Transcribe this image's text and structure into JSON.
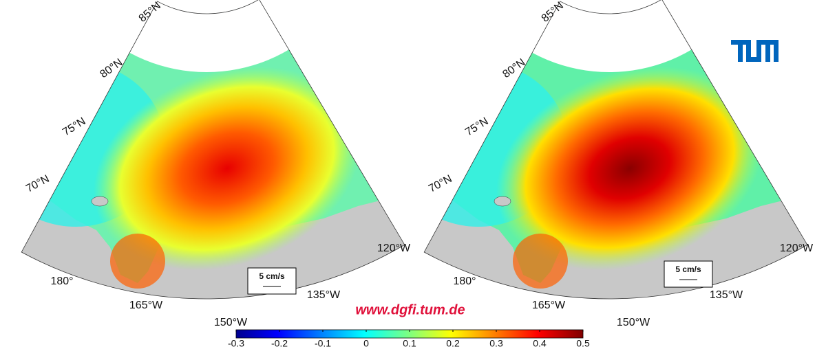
{
  "maps": [
    {
      "lat_labels": [
        "85°N",
        "80°N",
        "75°N",
        "70°N"
      ],
      "lon_labels": [
        "180°",
        "165°W",
        "150°W",
        "135°W",
        "120°W"
      ],
      "scale_label": "5 cm/s"
    },
    {
      "lat_labels": [
        "85°N",
        "80°N",
        "75°N",
        "70°N"
      ],
      "lon_labels": [
        "180°",
        "165°W",
        "150°W",
        "135°W",
        "120°W"
      ],
      "scale_label": "5 cm/s"
    }
  ],
  "url": "www.dgfi.tum.de",
  "colorbar": {
    "range": [
      -0.3,
      0.5
    ],
    "ticks": [
      -0.3,
      -0.2,
      -0.1,
      0,
      0.1,
      0.2,
      0.3,
      0.4,
      0.5
    ]
  }
}
